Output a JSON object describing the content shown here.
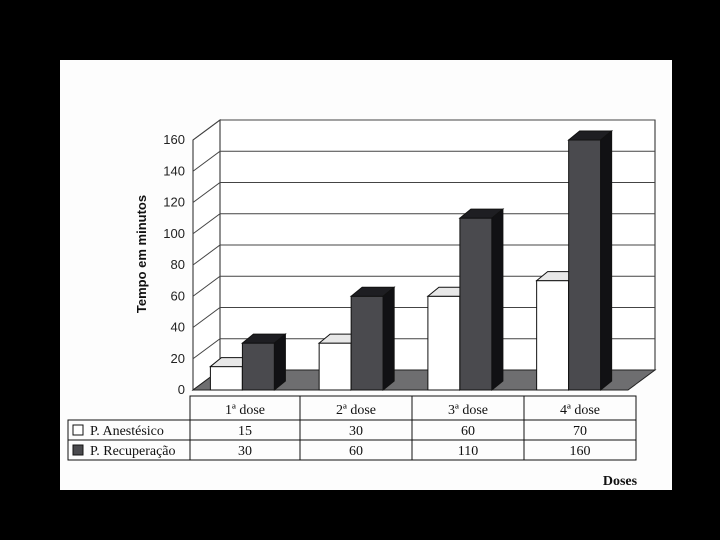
{
  "chart_data": {
    "type": "bar",
    "categories": [
      "1ª dose",
      "2ª dose",
      "3ª dose",
      "4ª dose"
    ],
    "series": [
      {
        "name": "P. Anestésico",
        "values": [
          15,
          30,
          60,
          70
        ],
        "color": "#ffffff"
      },
      {
        "name": "P. Recuperação",
        "values": [
          30,
          60,
          110,
          160
        ],
        "color": "#4a4a4e"
      }
    ],
    "ylabel": "Tempo em minutos",
    "xlabel": "Doses",
    "ylim": [
      0,
      160
    ],
    "yticks": [
      0,
      20,
      40,
      60,
      80,
      100,
      120,
      140,
      160
    ],
    "grid": true,
    "legend": "data-table-below",
    "style": "3d"
  }
}
